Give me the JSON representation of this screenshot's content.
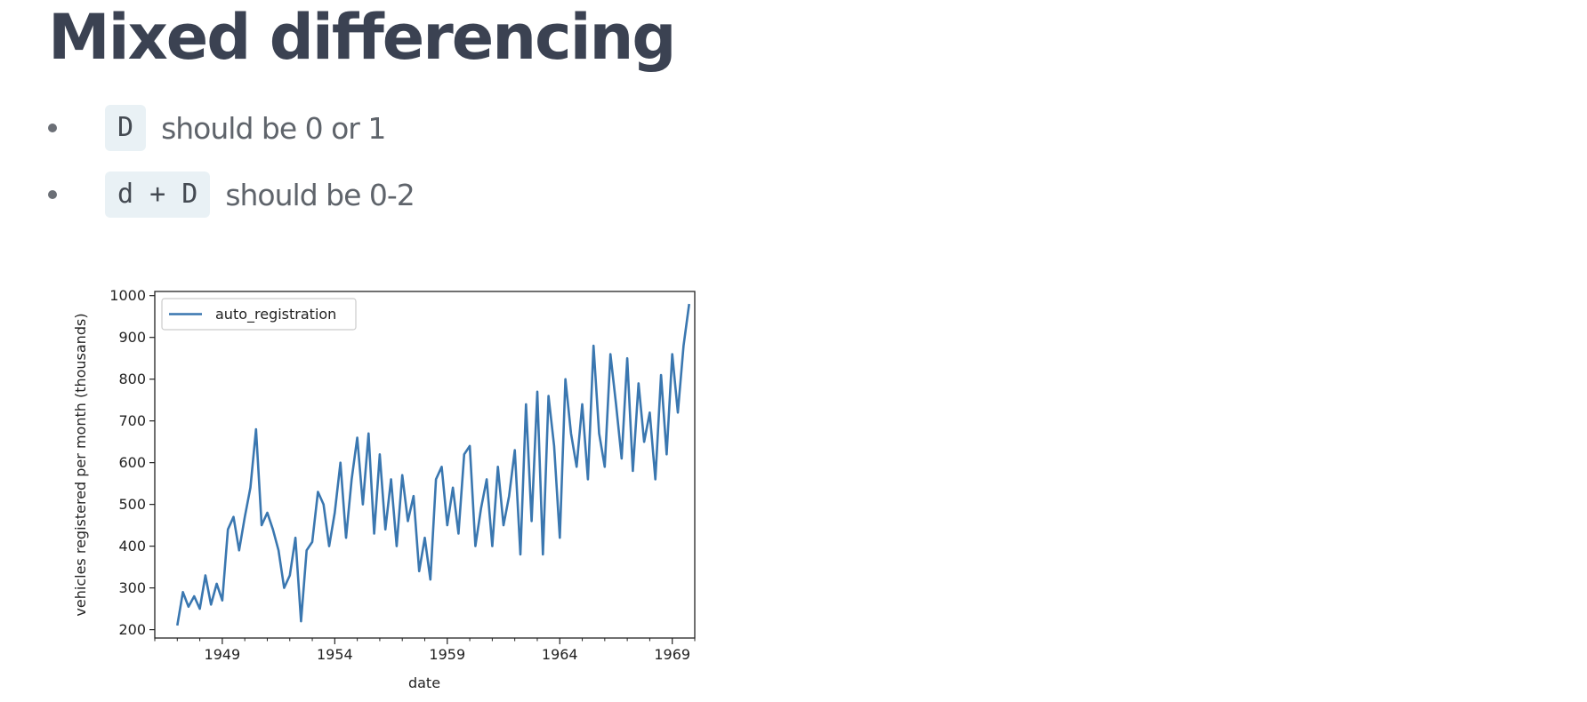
{
  "title": "Mixed differencing",
  "bullets": [
    {
      "code": "D",
      "text": "should be 0 or 1"
    },
    {
      "code": "d + D",
      "text": "should be 0-2"
    }
  ],
  "chart_data": {
    "type": "line",
    "title": "",
    "xlabel": "date",
    "ylabel": "vehicles registered per month (thousands)",
    "xlim": [
      "1946-01",
      "1970-01"
    ],
    "ylim": [
      180,
      1010
    ],
    "xticks": [
      "1949",
      "1954",
      "1959",
      "1964",
      "1969"
    ],
    "yticks": [
      200,
      300,
      400,
      500,
      600,
      700,
      800,
      900,
      1000
    ],
    "grid": false,
    "legend": "top-left",
    "color": "#3a77b0",
    "series": [
      {
        "name": "auto_registration",
        "x": [
          "1947-01",
          "1947-04",
          "1947-07",
          "1947-10",
          "1948-01",
          "1948-04",
          "1948-07",
          "1948-10",
          "1949-01",
          "1949-04",
          "1949-07",
          "1949-10",
          "1950-01",
          "1950-04",
          "1950-07",
          "1950-10",
          "1951-01",
          "1951-04",
          "1951-07",
          "1951-10",
          "1952-01",
          "1952-04",
          "1952-07",
          "1952-10",
          "1953-01",
          "1953-04",
          "1953-07",
          "1953-10",
          "1954-01",
          "1954-04",
          "1954-07",
          "1954-10",
          "1955-01",
          "1955-04",
          "1955-07",
          "1955-10",
          "1956-01",
          "1956-04",
          "1956-07",
          "1956-10",
          "1957-01",
          "1957-04",
          "1957-07",
          "1957-10",
          "1958-01",
          "1958-04",
          "1958-07",
          "1958-10",
          "1959-01",
          "1959-04",
          "1959-07",
          "1959-10",
          "1960-01",
          "1960-04",
          "1960-07",
          "1960-10",
          "1961-01",
          "1961-04",
          "1961-07",
          "1961-10",
          "1962-01",
          "1962-04",
          "1962-07",
          "1962-10",
          "1963-01",
          "1963-04",
          "1963-07",
          "1963-10",
          "1964-01",
          "1964-04",
          "1964-07",
          "1964-10",
          "1965-01",
          "1965-04",
          "1965-07",
          "1965-10",
          "1966-01",
          "1966-04",
          "1966-07",
          "1966-10",
          "1967-01",
          "1967-04",
          "1967-07",
          "1967-10",
          "1968-01",
          "1968-04",
          "1968-07",
          "1968-10",
          "1969-01",
          "1969-04",
          "1969-07",
          "1969-10"
        ],
        "values": [
          210,
          290,
          255,
          280,
          250,
          330,
          260,
          310,
          270,
          440,
          470,
          390,
          470,
          540,
          680,
          450,
          480,
          440,
          390,
          300,
          330,
          420,
          220,
          390,
          410,
          530,
          500,
          400,
          480,
          600,
          420,
          560,
          660,
          500,
          670,
          430,
          620,
          440,
          560,
          400,
          570,
          460,
          520,
          340,
          420,
          320,
          560,
          590,
          450,
          540,
          430,
          620,
          640,
          400,
          490,
          560,
          400,
          590,
          450,
          520,
          630,
          380,
          740,
          460,
          770,
          380,
          760,
          640,
          420,
          800,
          670,
          590,
          740,
          560,
          880,
          670,
          590,
          860,
          740,
          610,
          850,
          580,
          790,
          650,
          720,
          560,
          810,
          620,
          860,
          720,
          880,
          980
        ]
      }
    ]
  }
}
